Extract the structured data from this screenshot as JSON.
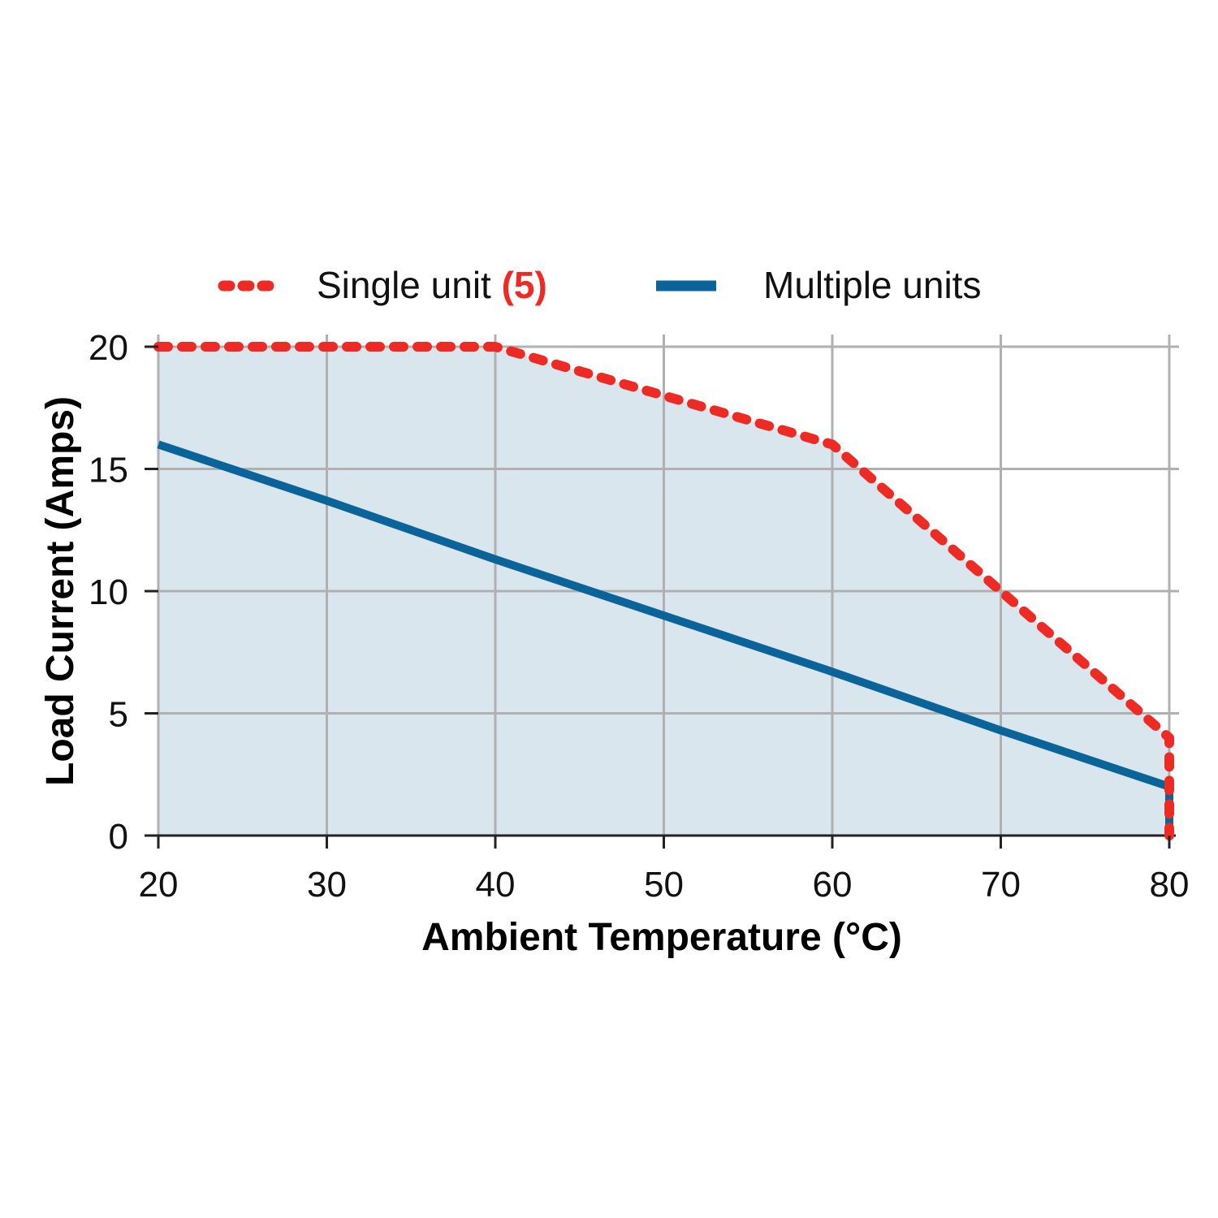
{
  "chart_data": {
    "type": "line",
    "title": "",
    "xlabel": "Ambient Temperature (°C)",
    "ylabel": "Load Current (Amps)",
    "xlim": [
      20,
      80
    ],
    "ylim": [
      0,
      20
    ],
    "x_ticks": [
      20,
      30,
      40,
      50,
      60,
      70,
      80
    ],
    "y_ticks": [
      0,
      5,
      10,
      15,
      20
    ],
    "grid": true,
    "legend_position": "top",
    "series": [
      {
        "name": "Single unit",
        "note": "(5)",
        "style": "dotted",
        "color": "#ee2a24",
        "x": [
          20,
          40,
          50,
          60,
          70,
          80,
          80
        ],
        "values": [
          20,
          20,
          18,
          16,
          10,
          4,
          0
        ]
      },
      {
        "name": "Multiple units",
        "style": "solid",
        "color": "#0a6499",
        "x": [
          20,
          30,
          40,
          50,
          60,
          70,
          80,
          80
        ],
        "values": [
          16,
          13.7,
          11.3,
          9.0,
          6.7,
          4.3,
          2,
          0
        ]
      }
    ],
    "fill_area": {
      "under_series": "Single unit",
      "color": "#d9e6ed"
    }
  },
  "legend": {
    "single_label": "Single unit",
    "single_note": "(5)",
    "multiple_label": "Multiple units"
  },
  "axes": {
    "x_title": "Ambient Temperature (°C)",
    "y_title": "Load Current (Amps)"
  },
  "colors": {
    "single": "#ee2a24",
    "multiple": "#0a6499",
    "fill": "#d9e6ed",
    "grid": "#b0b0b0",
    "axis": "#222222"
  }
}
